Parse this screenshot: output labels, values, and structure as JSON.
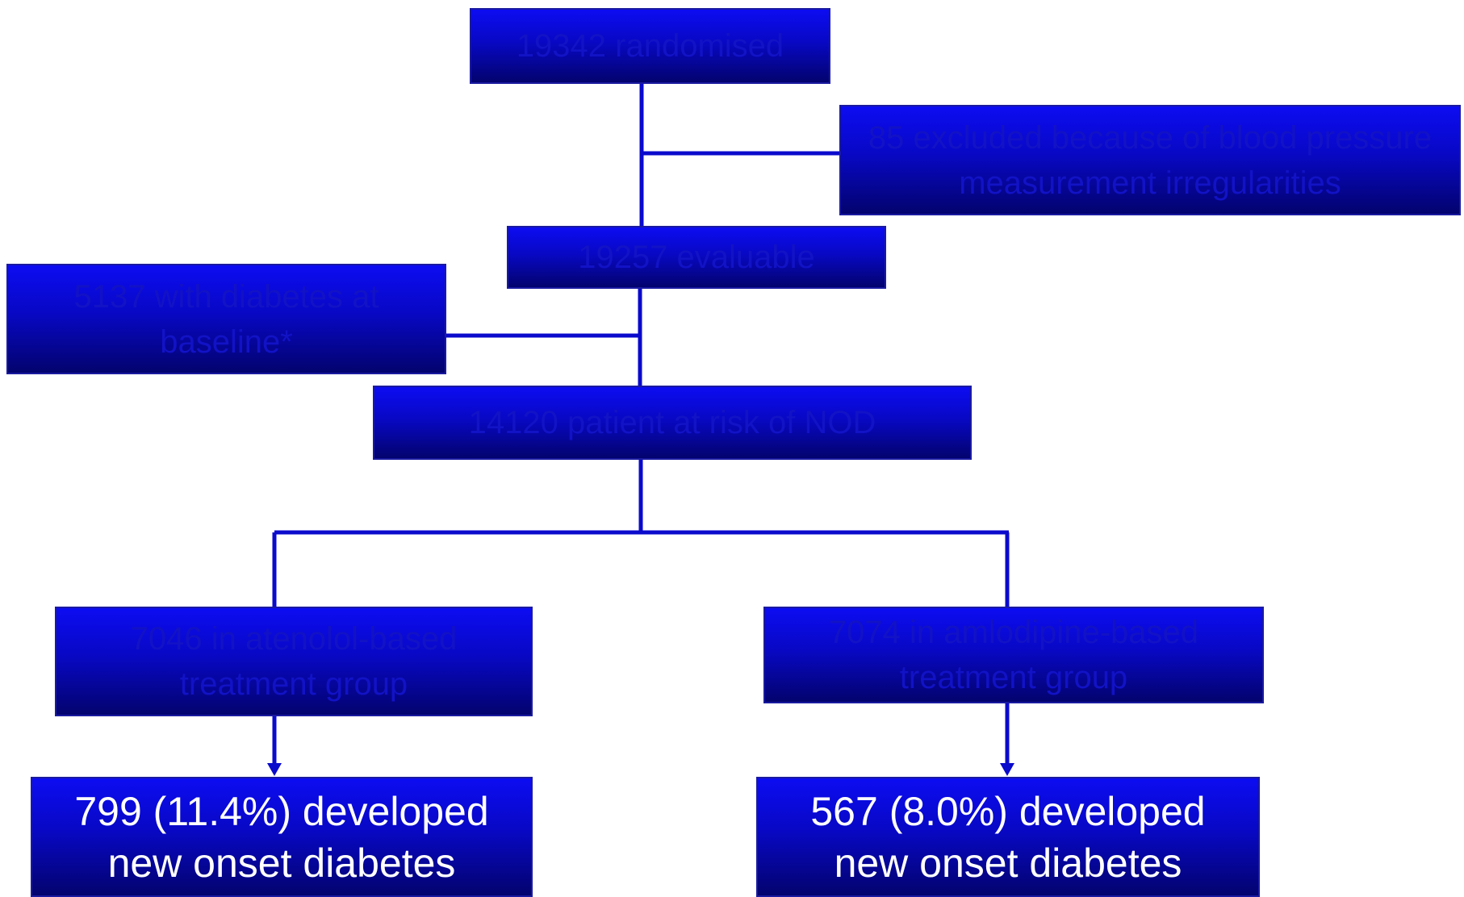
{
  "flowchart": {
    "randomised": "19342 randomised",
    "excluded": "85 excluded because of blood pressure measurement irregularities",
    "evaluable": "19257 evaluable",
    "diabetes_baseline": "5137 with diabetes at baseline*",
    "at_risk": "14120 patient at risk of NOD",
    "atenolol_group": "7046 in atenolol-based treatment group",
    "amlodipine_group": "7074 in amlodipine-based treatment group",
    "atenolol_outcome": "799 (11.4%) developed new onset diabetes",
    "amlodipine_outcome": "567 (8.0%) developed new onset diabetes"
  },
  "colors": {
    "box_top": "#0c0cf2",
    "box_bottom": "#03036e",
    "connector": "#0a0acc",
    "dim_text": "#1212c6",
    "bright_text": "#ffffff"
  }
}
